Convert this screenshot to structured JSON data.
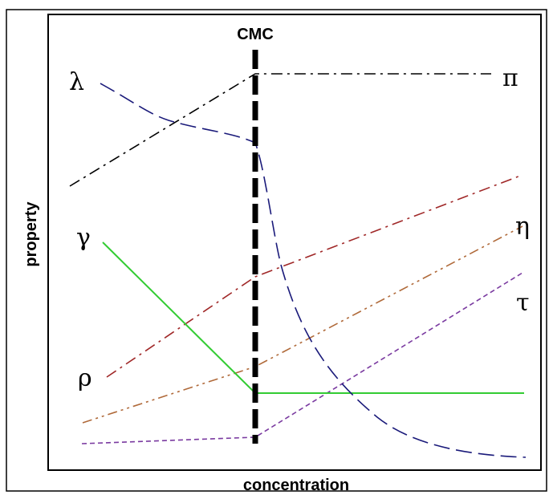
{
  "diagram": {
    "cmc_label": "CMC",
    "x_axis_label": "concentration",
    "y_axis_label": "property",
    "curve_labels": {
      "lambda": "λ",
      "pi": "π",
      "gamma": "γ",
      "eta": "η",
      "tau": "τ",
      "rho": "ρ"
    },
    "curve_colors": {
      "lambda": "#1a1a7a",
      "pi": "#000000",
      "gamma": "#33cc33",
      "eta": "#b06a3a",
      "tau": "#7a3aa0",
      "rho": "#a02828",
      "cmc": "#000000"
    }
  }
}
